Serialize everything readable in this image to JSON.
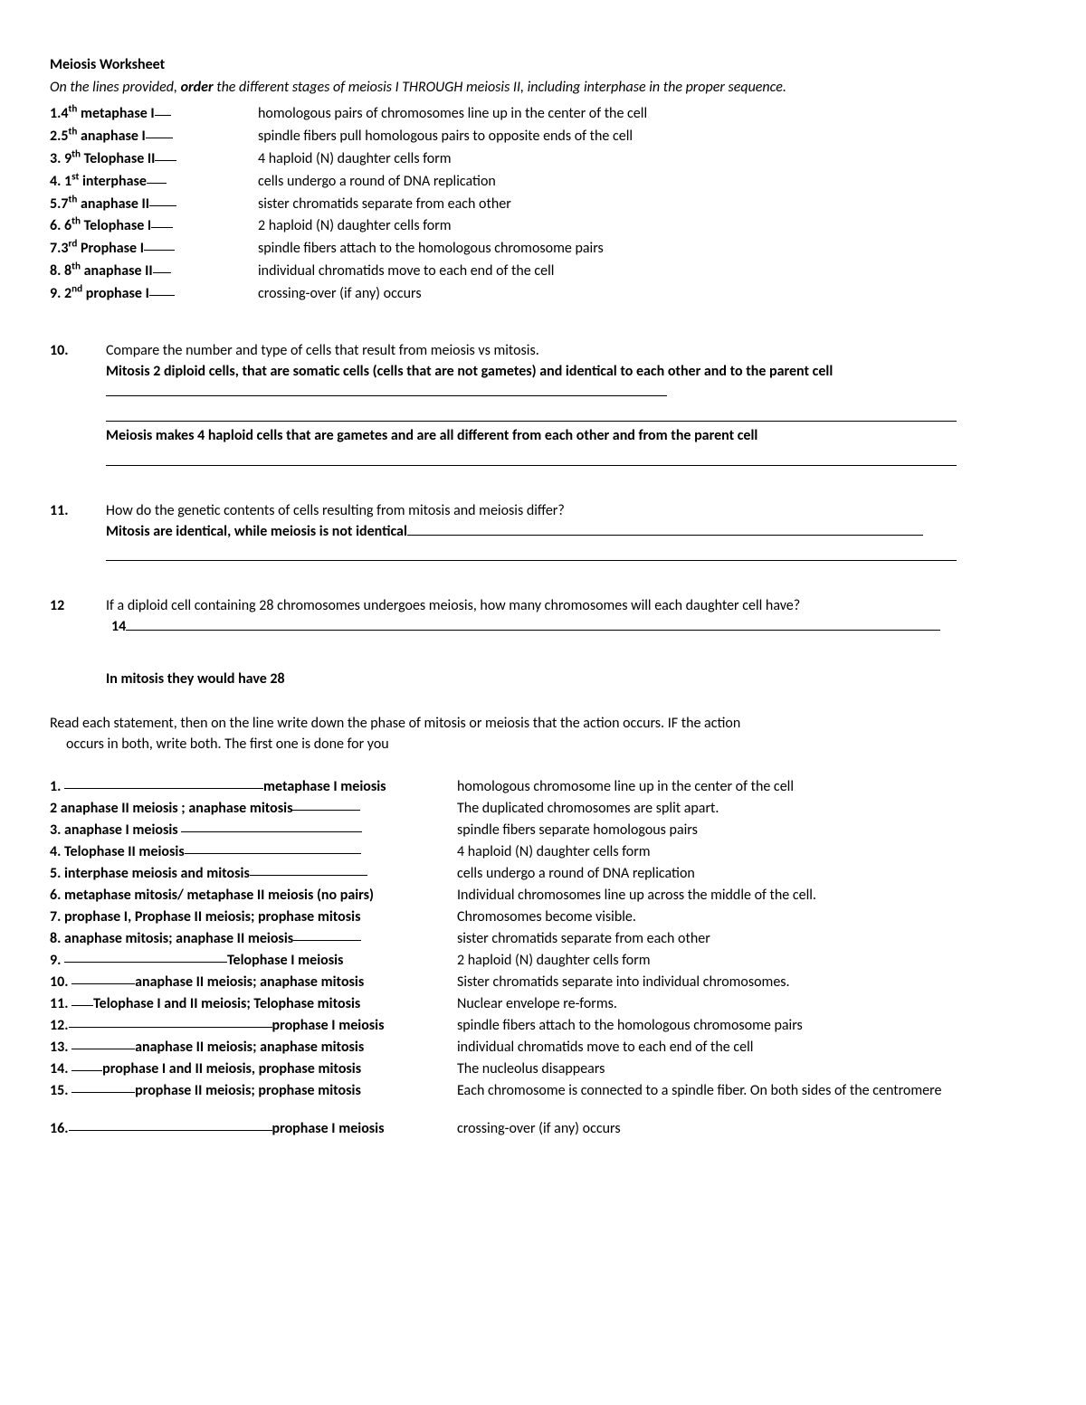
{
  "title": "Meiosis Worksheet",
  "instructions_pre": "On the lines provided, ",
  "instructions_bold": "order",
  "instructions_post": " the different stages of meiosis I THROUGH meiosis II, including interphase in the proper sequence.",
  "sequence": [
    {
      "num": "1.",
      "ord": "4",
      "sup": "th",
      "stage": " metaphase I",
      "blank_w": 18,
      "desc": "homologous pairs of chromosomes line up in the center of the cell"
    },
    {
      "num": "2.",
      "ord": "5",
      "sup": "th",
      "stage": " anaphase I",
      "blank_w": 30,
      "desc": "spindle fibers pull homologous pairs to opposite ends of the cell"
    },
    {
      "num": "3.",
      "ord": " 9",
      "sup": "th",
      "stage": " Telophase II",
      "blank_w": 24,
      "desc": "4 haploid (N) daughter cells form"
    },
    {
      "num": "4.",
      "ord": " 1",
      "sup": "st",
      "stage": "  interphase",
      "blank_w": 22,
      "desc": "cells undergo a round of DNA replication"
    },
    {
      "num": "5.",
      "ord": "7",
      "sup": "th",
      "stage": " anaphase II",
      "blank_w": 30,
      "desc": "sister chromatids separate from each other"
    },
    {
      "num": "6.",
      "ord": " 6",
      "sup": "th",
      "stage": " Telophase I",
      "blank_w": 24,
      "desc": "2 haploid (N) daughter cells form"
    },
    {
      "num": "7.",
      "ord": "3",
      "sup": "rd",
      "stage": " Prophase I",
      "blank_w": 34,
      "desc": "spindle fibers attach to the homologous chromosome pairs"
    },
    {
      "num": "8.",
      "ord": " 8",
      "sup": "th",
      "stage": "  anaphase II",
      "blank_w": 20,
      "desc": "individual chromatids move to each end of the cell"
    },
    {
      "num": "9.",
      "ord": " 2",
      "sup": "nd",
      "stage": " prophase I",
      "blank_w": 28,
      "desc": "crossing-over (if any) occurs"
    }
  ],
  "q10": {
    "num": "10.",
    "prompt": "Compare the number and type of cells that result from meiosis vs  mitosis.",
    "ans1": "Mitosis 2 diploid cells, that are somatic cells (cells that are not gametes) and identical to each other and to the parent cell",
    "ans2": "Meiosis  makes 4 haploid cells that are gametes and are all different from each other and from the parent cell"
  },
  "q11": {
    "num": "11.",
    "prompt": "How do the genetic contents of cells resulting from mitosis and meiosis differ?",
    "ans": "Mitosis are identical, while meiosis is not identical"
  },
  "q12": {
    "num": "12",
    "prompt": "If a diploid cell containing 28 chromosomes undergoes meiosis, how many chromosomes will each daughter cell have?",
    "ans": " 14",
    "note": "In mitosis they would have 28"
  },
  "read_intro_1": "Read each statement, then on the line write down the phase of mitosis or meiosis that the action occurs.  IF the action",
  "read_intro_2": "occurs in both, write both.  The first one is done for you",
  "phases": [
    {
      "left_pre_w": 220,
      "left_pre_num": "1. ",
      "left_text": "metaphase I meiosis",
      "right": "homologous chromosome line up in the center of the cell"
    },
    {
      "left_pre_w": 0,
      "left_pre_num": "",
      "left_text": "2 anaphase II meiosis ; anaphase mitosis",
      "trail_w": 75,
      "right": "The duplicated chromosomes are split apart."
    },
    {
      "left_pre_w": 0,
      "left_pre_num": "",
      "left_text": "3. anaphase I meiosis ",
      "trail_w": 200,
      "right": "spindle fibers separate homologous pairs"
    },
    {
      "left_pre_w": 0,
      "left_pre_num": "",
      "left_text": "4. Telophase II meiosis",
      "trail_w": 195,
      "right": "4 haploid (N) daughter cells form"
    },
    {
      "left_pre_w": 0,
      "left_pre_num": "",
      "left_text": "5. interphase meiosis and mitosis",
      "trail_w": 130,
      "right": "cells undergo a round of DNA replication"
    },
    {
      "left_pre_w": 0,
      "left_pre_num": "",
      "left_text": "6. metaphase mitosis/ metaphase II meiosis (no pairs)",
      "trail_w": 0,
      "right": " Individual  chromosomes line up across the middle of the cell."
    },
    {
      "left_pre_w": 0,
      "left_pre_num": "",
      "left_text": "7. prophase I, Prophase II meiosis; prophase mitosis",
      "trail_w": 0,
      "right": " Chromosomes become visible."
    },
    {
      "left_pre_w": 0,
      "left_pre_num": "",
      "left_text": "8. anaphase mitosis; anaphase II meiosis",
      "trail_w": 75,
      "right": "sister chromatids separate from each other"
    },
    {
      "left_pre_w": 180,
      "left_pre_num": "9. ",
      "left_text": "Telophase I meiosis",
      "right": "2 haploid (N) daughter cells form"
    },
    {
      "left_pre_w": 70,
      "left_pre_num": "10. ",
      "left_text": "anaphase II meiosis; anaphase mitosis",
      "right": "Sister chromatids separate into individual chromosomes."
    },
    {
      "left_pre_w": 24,
      "left_pre_num": "11. ",
      "left_text": "Telophase I and II meiosis; Telophase mitosis",
      "right": "Nuclear envelope re-forms."
    },
    {
      "left_pre_w": 225,
      "left_pre_num": "12.",
      "left_text": "prophase I meiosis",
      "right": "spindle fibers attach to the homologous chromosome pairs"
    },
    {
      "left_pre_w": 70,
      "left_pre_num": "13. ",
      "left_text": "anaphase II meiosis; anaphase mitosis",
      "right": "individual chromatids move to each end of the cell"
    },
    {
      "left_pre_w": 34,
      "left_pre_num": "14. ",
      "left_text": "prophase I and II meiosis, prophase mitosis",
      "right": "The nucleolus disappears"
    },
    {
      "left_pre_w": 70,
      "left_pre_num": "15. ",
      "left_text": "prophase II meiosis; prophase mitosis",
      "right": "Each chromosome is connected to a spindle fiber.  On both sides of the centromere"
    },
    {
      "left_pre_w": 225,
      "left_pre_num": "16.",
      "left_text": "prophase I meiosis",
      "right": "crossing-over (if any) occurs",
      "gap_before": true
    }
  ]
}
